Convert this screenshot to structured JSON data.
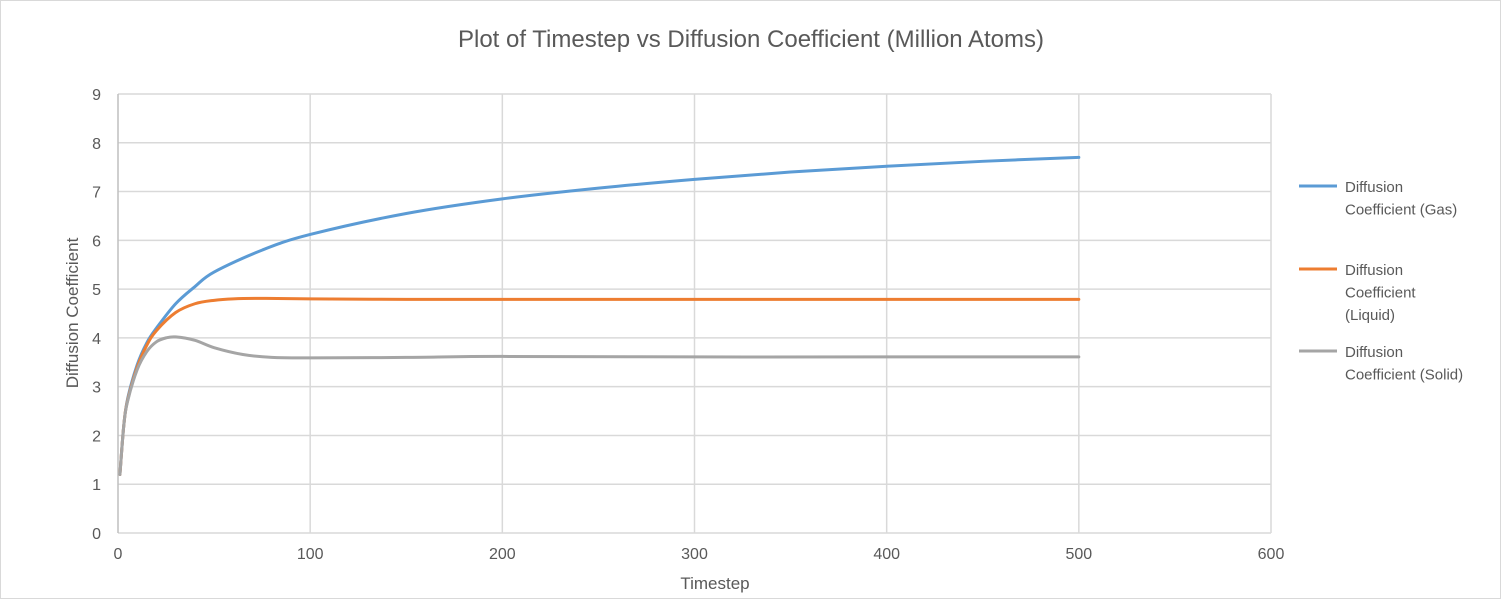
{
  "chart_data": {
    "type": "line",
    "title": "Plot of Timestep vs Diffusion Coefficient (Million Atoms)",
    "xlabel": "Timestep",
    "ylabel": "Diffusion Coefficient",
    "xlim": [
      0,
      600
    ],
    "ylim": [
      0,
      9
    ],
    "xticks": [
      0,
      100,
      200,
      300,
      400,
      500,
      600
    ],
    "yticks": [
      0,
      1,
      2,
      3,
      4,
      5,
      6,
      7,
      8,
      9
    ],
    "grid": true,
    "legend_position": "right",
    "series": [
      {
        "name": "Diffusion Coefficient (Gas)",
        "legend_lines": [
          "Diffusion",
          "Coefficient (Gas)"
        ],
        "color": "#5b9bd5",
        "x": [
          1,
          3,
          5,
          10,
          15,
          20,
          30,
          40,
          50,
          75,
          100,
          150,
          200,
          250,
          300,
          350,
          400,
          450,
          500
        ],
        "y": [
          1.2,
          2.2,
          2.75,
          3.45,
          3.9,
          4.2,
          4.7,
          5.05,
          5.35,
          5.8,
          6.12,
          6.55,
          6.85,
          7.07,
          7.25,
          7.4,
          7.52,
          7.62,
          7.7
        ]
      },
      {
        "name": "Diffusion Coefficient (Liquid)",
        "legend_lines": [
          "Diffusion",
          "Coefficient",
          "(Liquid)"
        ],
        "color": "#ed7d31",
        "x": [
          1,
          3,
          5,
          10,
          15,
          20,
          30,
          40,
          50,
          60,
          75,
          100,
          150,
          200,
          300,
          400,
          500
        ],
        "y": [
          1.2,
          2.2,
          2.72,
          3.4,
          3.85,
          4.15,
          4.52,
          4.7,
          4.77,
          4.8,
          4.81,
          4.8,
          4.79,
          4.79,
          4.79,
          4.79,
          4.79
        ]
      },
      {
        "name": "Diffusion Coefficient (Solid)",
        "legend_lines": [
          "Diffusion",
          "Coefficient (Solid)"
        ],
        "color": "#a5a5a5",
        "x": [
          1,
          3,
          5,
          10,
          15,
          20,
          25,
          30,
          40,
          50,
          65,
          80,
          100,
          150,
          200,
          300,
          400,
          500
        ],
        "y": [
          1.2,
          2.2,
          2.7,
          3.35,
          3.72,
          3.92,
          4.0,
          4.02,
          3.95,
          3.8,
          3.66,
          3.6,
          3.59,
          3.6,
          3.62,
          3.61,
          3.61,
          3.61
        ]
      }
    ]
  }
}
